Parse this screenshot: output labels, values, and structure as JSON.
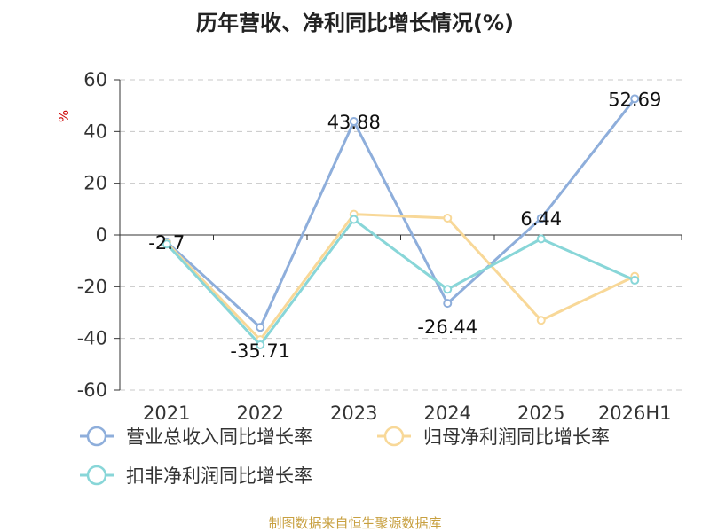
{
  "chart_data": {
    "type": "line",
    "title": "历年营收、净利同比增长情况(%)",
    "ylabel": "%",
    "categories": [
      "2021",
      "2022",
      "2023",
      "2024",
      "2025",
      "2026H1"
    ],
    "ylim": [
      -60,
      60
    ],
    "yticks": [
      "60",
      "40",
      "20",
      "0",
      "-20",
      "-40",
      "-60"
    ],
    "grid": true,
    "legend_position": "bottom",
    "series": [
      {
        "name": "营业总收入同比增长率",
        "color": "#8eaedb",
        "values": [
          -2.7,
          -35.71,
          43.88,
          -26.44,
          6.44,
          52.69
        ],
        "labels": [
          "-2.7",
          "-35.71",
          "43.88",
          "-26.44",
          "6.44",
          "52.69"
        ]
      },
      {
        "name": "归母净利润同比增长率",
        "color": "#f8d898",
        "values": [
          -3.0,
          -40.5,
          8.0,
          6.5,
          -33.0,
          -16.0
        ]
      },
      {
        "name": "扣非净利润同比增长率",
        "color": "#88d6d8",
        "values": [
          -3.5,
          -42.5,
          6.0,
          -21.0,
          -1.5,
          -17.5
        ]
      }
    ],
    "source": "制图数据来自恒生聚源数据库"
  }
}
